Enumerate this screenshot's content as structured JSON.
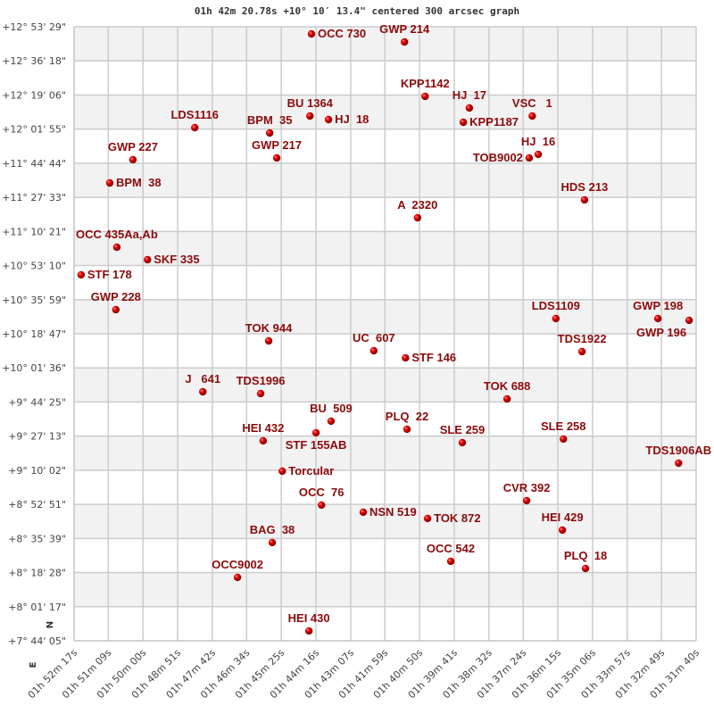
{
  "chart_data": {
    "type": "scatter",
    "title": "01h 42m 20.78s +10° 10′ 13.4\" centered 300 arcsec graph",
    "xlabel": "",
    "ylabel": "",
    "xlim": [
      "01h 52m 17s",
      "01h 31m 40s"
    ],
    "ylim": [
      "+7° 44' 05\"",
      "+12° 53' 29\""
    ],
    "x_ticks": [
      "01h 52m 17s",
      "01h 51m 09s",
      "01h 50m 00s",
      "01h 48m 51s",
      "01h 47m 42s",
      "01h 46m 34s",
      "01h 45m 25s",
      "01h 44m 16s",
      "01h 43m 07s",
      "01h 41m 59s",
      "01h 40m 50s",
      "01h 39m 41s",
      "01h 38m 32s",
      "01h 37m 24s",
      "01h 36m 15s",
      "01h 35m 06s",
      "01h 33m 57s",
      "01h 32m 49s",
      "01h 31m 40s"
    ],
    "y_ticks": [
      "+12° 53' 29\"",
      "+12° 36' 18\"",
      "+12° 19' 06\"",
      "+12° 01' 55\"",
      "+11° 44' 44\"",
      "+11° 27' 33\"",
      "+11° 10' 21\"",
      "+10° 53' 10\"",
      "+10° 35' 59\"",
      "+10° 18' 47\"",
      "+10° 01' 36\"",
      "+9° 44' 25\"",
      "+9° 27' 13\"",
      "+9° 10' 02\"",
      "+8° 52' 51\"",
      "+8° 35' 39\"",
      "+8° 18' 28\"",
      "+8° 01' 17\"",
      "+7° 44' 05\""
    ],
    "grid": true,
    "compass": {
      "north": "N",
      "east": "E"
    },
    "colors": {
      "point": "#dd0000",
      "label": "#8b0a0a",
      "band": "#f2f2f2",
      "grid": "#cccccc"
    },
    "points": [
      {
        "name": "OCC 730",
        "ra": "01h 44m 25s",
        "dec": "+12° 49' 53\""
      },
      {
        "name": "GWP 214",
        "ra": "01h 41m 20s",
        "dec": "+12° 45' 50\""
      },
      {
        "name": "KPP1142",
        "ra": "01h 40m 39s",
        "dec": "+12° 18' 25\""
      },
      {
        "name": "HJ  17",
        "ra": "01h 39m 11s",
        "dec": "+12° 12' 34\""
      },
      {
        "name": "KPP1187",
        "ra": "01h 39m 23s",
        "dec": "+12° 05' 22\""
      },
      {
        "name": "VSC   1",
        "ra": "01h 37m 06s",
        "dec": "+12° 08' 31\""
      },
      {
        "name": "BU 1364",
        "ra": "01h 44m 28s",
        "dec": "+12° 08' 31\""
      },
      {
        "name": "HJ  18",
        "ra": "01h 43m 51s",
        "dec": "+12° 06' 43\""
      },
      {
        "name": "LDS1116",
        "ra": "01h 48m 17s",
        "dec": "+12° 02' 40\""
      },
      {
        "name": "BPM  35",
        "ra": "01h 45m 48s",
        "dec": "+11° 59' 58\""
      },
      {
        "name": "GWP 217",
        "ra": "01h 45m 34s",
        "dec": "+11° 47' 23\""
      },
      {
        "name": "GWP 227",
        "ra": "01h 50m 20s",
        "dec": "+11° 46' 29\""
      },
      {
        "name": "TOB9002",
        "ra": "01h 37m 12s",
        "dec": "+11° 47' 23\""
      },
      {
        "name": "HJ  16",
        "ra": "01h 36m 54s",
        "dec": "+11° 49' 11\""
      },
      {
        "name": "BPM  38",
        "ra": "01h 51m 06s",
        "dec": "+11° 34' 47\""
      },
      {
        "name": "HDS 213",
        "ra": "01h 35m 22s",
        "dec": "+11° 26' 15\""
      },
      {
        "name": "A  2320",
        "ra": "01h 40m 54s",
        "dec": "+11° 17' 15\""
      },
      {
        "name": "OCC 435Aa,Ab",
        "ra": "01h 50m 52s",
        "dec": "+11° 02' 25\""
      },
      {
        "name": "SKF 335",
        "ra": "01h 49m 51s",
        "dec": "+10° 56' 07\""
      },
      {
        "name": "STF 178",
        "ra": "01h 52m 03s",
        "dec": "+10° 48' 29\""
      },
      {
        "name": "GWP 228",
        "ra": "01h 50m 54s",
        "dec": "+10° 30' 56\""
      },
      {
        "name": "LDS1109",
        "ra": "01h 36m 19s",
        "dec": "+10° 26' 27\""
      },
      {
        "name": "GWP 198",
        "ra": "01h 32m 56s",
        "dec": "+10° 26' 27\""
      },
      {
        "name": "GWP 196",
        "ra": "01h 31m 54s",
        "dec": "+10° 25' 33\""
      },
      {
        "name": "TOK 944",
        "ra": "01h 45m 50s",
        "dec": "+10° 15' 12\""
      },
      {
        "name": "UC  607",
        "ra": "01h 42m 21s",
        "dec": "+10° 10' 15\""
      },
      {
        "name": "STF 146",
        "ra": "01h 41m 18s",
        "dec": "+10° 06' 39\""
      },
      {
        "name": "TDS1922",
        "ra": "01h 35m 27s",
        "dec": "+10° 09' 48\""
      },
      {
        "name": "J   641",
        "ra": "01h 48m 01s",
        "dec": "+9° 49' 34\""
      },
      {
        "name": "TDS1996",
        "ra": "01h 46m 06s",
        "dec": "+9° 48' 40\""
      },
      {
        "name": "TOK 688",
        "ra": "01h 37m 56s",
        "dec": "+9° 45' 58\""
      },
      {
        "name": "BU  509",
        "ra": "01h 43m 46s",
        "dec": "+9° 34' 44\""
      },
      {
        "name": "STF 155AB",
        "ra": "01h 44m 16s",
        "dec": "+9° 28' 53\""
      },
      {
        "name": "PLQ  22",
        "ra": "01h 41m 15s",
        "dec": "+9° 30' 41\""
      },
      {
        "name": "HEI 432",
        "ra": "01h 46m 01s",
        "dec": "+9° 24' 50\""
      },
      {
        "name": "SLE 259",
        "ra": "01h 39m 25s",
        "dec": "+9° 23' 56\""
      },
      {
        "name": "SLE 258",
        "ra": "01h 36m 04s",
        "dec": "+9° 25' 44\""
      },
      {
        "name": "TDS1906AB",
        "ra": "01h 32m 15s",
        "dec": "+9° 13' 36\""
      },
      {
        "name": "Torcular",
        "ra": "01h 45m 23s",
        "dec": "+9° 09' 33\""
      },
      {
        "name": "CVR 392",
        "ra": "01h 37m 17s",
        "dec": "+8° 54' 43\""
      },
      {
        "name": "OCC  76",
        "ra": "01h 44m 05s",
        "dec": "+8° 52' 28\""
      },
      {
        "name": "NSN 519",
        "ra": "01h 42m 42s",
        "dec": "+8° 48' 52\""
      },
      {
        "name": "TOK 872",
        "ra": "01h 40m 34s",
        "dec": "+8° 45' 43\""
      },
      {
        "name": "HEI 429",
        "ra": "01h 36m 06s",
        "dec": "+8° 39' 52\""
      },
      {
        "name": "BAG  38",
        "ra": "01h 45m 43s",
        "dec": "+8° 33' 35\""
      },
      {
        "name": "OCC 542",
        "ra": "01h 39m 48s",
        "dec": "+8° 24' 08\""
      },
      {
        "name": "PLQ  18",
        "ra": "01h 35m 20s",
        "dec": "+8° 20' 32\""
      },
      {
        "name": "OCC9002",
        "ra": "01h 46m 52s",
        "dec": "+8° 16' 02\""
      },
      {
        "name": "HEI 430",
        "ra": "01h 44m 30s",
        "dec": "+7° 49' 04\""
      }
    ]
  }
}
